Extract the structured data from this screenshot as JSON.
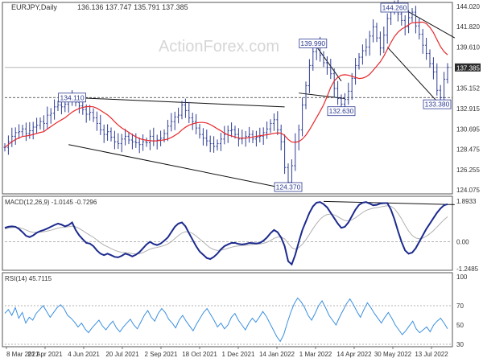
{
  "chart_data": {
    "type": "line",
    "title": "EURJPY,Daily",
    "ohlc_header": "136.136 137.747 135.791 137.385",
    "watermark": "ActionForex.com",
    "x_tick_labels": [
      "8 Mar 2021",
      "21 Apr 2021",
      "4 Jun 2021",
      "20 Jul 2021",
      "2 Sep 2021",
      "18 Oct 2021",
      "1 Dec 2021",
      "14 Jan 2022",
      "1 Mar 2022",
      "14 Apr 2022",
      "30 May 2022",
      "13 Jul 2022"
    ],
    "colors": {
      "price": "#2f3d95",
      "ma": "#e8282b",
      "macd": "#1c2a8e",
      "signal": "#b0b0b0",
      "rsi": "#3a8fe0",
      "trend": "#111111",
      "label_bg": "#2b3990"
    },
    "price_panel": {
      "ylim": [
        124.075,
        144.02
      ],
      "y_ticks": [
        "144.020",
        "141.820",
        "139.610",
        "137.385",
        "135.152",
        "132.915",
        "130.695",
        "128.475",
        "126.255",
        "124.075"
      ],
      "last_price": "137.385",
      "support_level": "134.110",
      "annotations": [
        {
          "label": "144.260",
          "x_index": 110,
          "y": 144.26
        },
        {
          "label": "139.990",
          "x_index": 87,
          "y": 139.99
        },
        {
          "label": "134.110",
          "x_index": 19,
          "y": 134.11
        },
        {
          "label": "132.630",
          "x_index": 95,
          "y": 132.63
        },
        {
          "label": "133.380",
          "x_index": 123,
          "y": 133.38
        },
        {
          "label": "124.370",
          "x_index": 80,
          "y": 124.37
        }
      ],
      "close": [
        128.7,
        129.3,
        129.9,
        130.3,
        130.4,
        130.7,
        130.2,
        130.5,
        130.9,
        131.1,
        131.5,
        131.3,
        132.2,
        132.4,
        133.1,
        133.3,
        133.1,
        133.4,
        133.9,
        134.1,
        133.6,
        133.2,
        132.8,
        132.3,
        132.5,
        131.9,
        131.3,
        130.6,
        130.1,
        130.4,
        129.8,
        129.3,
        129.1,
        129.6,
        129.9,
        129.5,
        129.3,
        129.2,
        129.0,
        129.3,
        129.2,
        129.9,
        129.4,
        129.5,
        129.7,
        130.2,
        131.0,
        131.5,
        132.0,
        132.2,
        133.3,
        132.7,
        131.9,
        131.5,
        130.8,
        130.1,
        129.7,
        129.4,
        129.1,
        128.8,
        129.1,
        129.6,
        130.1,
        130.5,
        130.6,
        130.1,
        129.6,
        129.7,
        129.9,
        130.1,
        129.6,
        129.8,
        129.9,
        130.3,
        130.7,
        131.3,
        131.7,
        130.6,
        129.3,
        126.5,
        124.9,
        126.7,
        129.3,
        130.6,
        133.3,
        135.4,
        137.6,
        139.1,
        139.9,
        138.7,
        137.9,
        137.4,
        136.7,
        135.1,
        134.0,
        133.4,
        133.9,
        134.8,
        136.2,
        137.6,
        138.5,
        139.2,
        139.6,
        140.8,
        141.8,
        140.6,
        139.5,
        140.9,
        142.7,
        143.6,
        144.2,
        143.2,
        142.5,
        141.8,
        142.8,
        143.4,
        141.9,
        141.0,
        139.8,
        138.9,
        137.8,
        136.9,
        134.9,
        134.1,
        136.1,
        137.4
      ]
    },
    "macd_panel": {
      "label": "MACD(12,26,9) -1.0145 -0.7296",
      "ylim": [
        -1.2485,
        1.8933
      ],
      "y_ticks": [
        "1.8933",
        "0.00",
        "-1.2485"
      ],
      "macd": [
        0.65,
        0.7,
        0.72,
        0.7,
        0.6,
        0.45,
        0.28,
        0.22,
        0.3,
        0.42,
        0.5,
        0.55,
        0.62,
        0.7,
        0.78,
        0.85,
        0.8,
        0.72,
        0.78,
        0.9,
        0.55,
        0.3,
        0.12,
        -0.05,
        -0.08,
        -0.2,
        -0.4,
        -0.55,
        -0.62,
        -0.55,
        -0.62,
        -0.7,
        -0.72,
        -0.65,
        -0.55,
        -0.6,
        -0.68,
        -0.6,
        -0.48,
        -0.3,
        -0.12,
        0.0,
        -0.1,
        -0.15,
        -0.08,
        0.05,
        0.2,
        0.45,
        0.7,
        0.85,
        0.9,
        0.72,
        0.4,
        0.1,
        -0.2,
        -0.45,
        -0.6,
        -0.75,
        -0.8,
        -0.7,
        -0.55,
        -0.35,
        -0.2,
        -0.12,
        -0.05,
        -0.05,
        -0.1,
        -0.12,
        -0.1,
        -0.05,
        -0.06,
        -0.08,
        -0.05,
        0.05,
        0.2,
        0.4,
        0.55,
        0.45,
        0.2,
        -0.2,
        -0.9,
        -1.05,
        -0.6,
        0.0,
        0.55,
        0.95,
        1.35,
        1.65,
        1.82,
        1.85,
        1.75,
        1.6,
        1.35,
        1.1,
        0.85,
        0.65,
        0.7,
        0.9,
        1.2,
        1.5,
        1.72,
        1.82,
        1.85,
        1.78,
        1.7,
        1.72,
        1.78,
        1.8,
        1.8,
        1.5,
        1.05,
        0.5,
        0.0,
        -0.4,
        -0.55,
        -0.5,
        -0.3,
        0.0,
        0.3,
        0.6,
        0.85,
        1.1,
        1.35,
        1.55,
        1.7,
        1.75
      ],
      "signal": [
        0.6,
        0.64,
        0.67,
        0.68,
        0.66,
        0.62,
        0.55,
        0.48,
        0.44,
        0.44,
        0.45,
        0.47,
        0.5,
        0.54,
        0.59,
        0.64,
        0.67,
        0.68,
        0.7,
        0.73,
        0.7,
        0.62,
        0.52,
        0.41,
        0.31,
        0.21,
        0.09,
        -0.04,
        -0.15,
        -0.23,
        -0.31,
        -0.39,
        -0.45,
        -0.49,
        -0.5,
        -0.52,
        -0.55,
        -0.56,
        -0.55,
        -0.5,
        -0.42,
        -0.34,
        -0.29,
        -0.26,
        -0.22,
        -0.17,
        -0.1,
        0.01,
        0.15,
        0.29,
        0.41,
        0.47,
        0.46,
        0.39,
        0.27,
        0.13,
        0.0,
        -0.15,
        -0.28,
        -0.36,
        -0.4,
        -0.39,
        -0.35,
        -0.3,
        -0.25,
        -0.21,
        -0.19,
        -0.17,
        -0.16,
        -0.14,
        -0.12,
        -0.11,
        -0.1,
        -0.07,
        -0.02,
        0.06,
        0.16,
        0.22,
        0.22,
        0.14,
        -0.07,
        -0.27,
        -0.34,
        -0.27,
        -0.11,
        0.1,
        0.35,
        0.61,
        0.85,
        1.05,
        1.19,
        1.27,
        1.29,
        1.25,
        1.17,
        1.07,
        0.99,
        0.97,
        1.02,
        1.12,
        1.24,
        1.36,
        1.46,
        1.52,
        1.56,
        1.59,
        1.62,
        1.65,
        1.68,
        1.65,
        1.54,
        1.33,
        1.07,
        0.77,
        0.5,
        0.3,
        0.18,
        0.14,
        0.17,
        0.26,
        0.38,
        0.52,
        0.69,
        0.86,
        1.03,
        1.17
      ]
    },
    "rsi_panel": {
      "label": "RSI(14) 45.7115",
      "ylim": [
        30,
        100
      ],
      "y_ticks": [
        "100",
        "70",
        "50",
        "30"
      ],
      "values": [
        62,
        66,
        60,
        68,
        57,
        63,
        52,
        58,
        55,
        62,
        66,
        70,
        64,
        58,
        63,
        68,
        71,
        67,
        60,
        57,
        53,
        48,
        52,
        46,
        42,
        47,
        51,
        55,
        49,
        45,
        50,
        54,
        47,
        43,
        48,
        52,
        56,
        50,
        46,
        53,
        60,
        65,
        58,
        54,
        62,
        67,
        63,
        56,
        52,
        47,
        55,
        60,
        54,
        49,
        44,
        51,
        57,
        63,
        67,
        61,
        55,
        48,
        52,
        46,
        50,
        58,
        62,
        55,
        50,
        45,
        52,
        57,
        53,
        58,
        64,
        59,
        52,
        45,
        38,
        33,
        40,
        52,
        63,
        72,
        78,
        74,
        68,
        60,
        55,
        62,
        70,
        75,
        68,
        60,
        55,
        50,
        58,
        65,
        72,
        77,
        71,
        64,
        58,
        66,
        73,
        68,
        62,
        57,
        52,
        58,
        63,
        57,
        50,
        45,
        40,
        44,
        49,
        54,
        46,
        42,
        45,
        48,
        43,
        50,
        54,
        57,
        52,
        46
      ]
    }
  }
}
